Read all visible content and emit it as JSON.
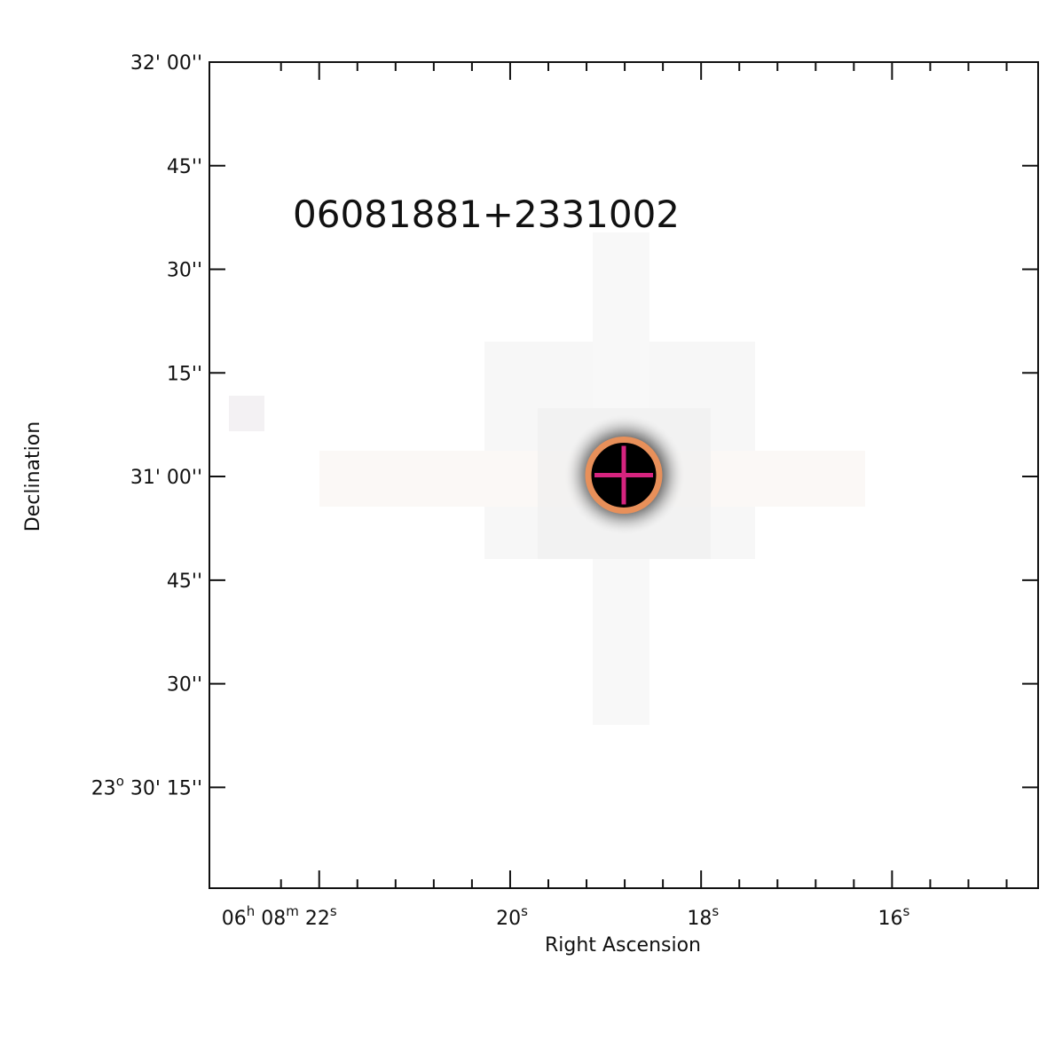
{
  "chart_data": {
    "type": "image",
    "annotation": "06081881+2331002",
    "xlabel": "Right Ascension",
    "ylabel": "Declination",
    "xlim": [
      23.15,
      14.47
    ],
    "ylim": [
      0.4,
      120
    ],
    "xticks": [
      {
        "value": 22,
        "label": [
          "06",
          "h",
          " 08",
          "m",
          " 22",
          "s"
        ]
      },
      {
        "value": 20,
        "label": [
          "20",
          "s"
        ]
      },
      {
        "value": 18,
        "label": [
          "18",
          "s"
        ]
      },
      {
        "value": 16,
        "label": [
          "16",
          "s"
        ]
      }
    ],
    "xminorticks": [
      22.4,
      21.6,
      21.2,
      20.8,
      20.4,
      19.6,
      19.2,
      18.8,
      18.4,
      17.6,
      17.2,
      16.8,
      16.4,
      15.6,
      15.2,
      14.8
    ],
    "yticks": [
      {
        "value": 120,
        "label": [
          "32' 00''"
        ]
      },
      {
        "value": 105,
        "label": [
          "45''"
        ]
      },
      {
        "value": 90,
        "label": [
          "30''"
        ]
      },
      {
        "value": 75,
        "label": [
          "15''"
        ]
      },
      {
        "value": 60,
        "label": [
          "31' 00''"
        ]
      },
      {
        "value": 45,
        "label": [
          "45''"
        ]
      },
      {
        "value": 30,
        "label": [
          "30''"
        ]
      },
      {
        "value": 15,
        "label": [
          "23",
          "o",
          " 30' 15''"
        ]
      }
    ],
    "source": {
      "x": 18.81,
      "y": 60.2,
      "circle_color": "#e8905a",
      "cross_color": "#d6247f"
    },
    "annotation_color": "#1f5c3c"
  }
}
